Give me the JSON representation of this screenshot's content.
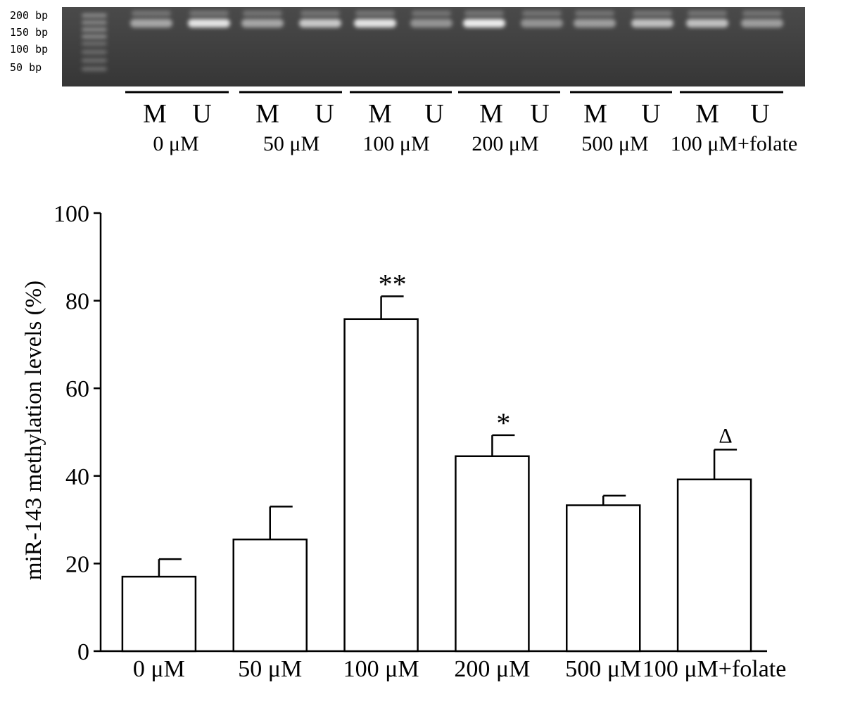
{
  "gel": {
    "size_markers": [
      "200 bp",
      "150 bp",
      "100 bp",
      "50 bp"
    ],
    "groups": [
      {
        "conc": "0 μM",
        "lanes": [
          "M",
          "U"
        ]
      },
      {
        "conc": "50 μM",
        "lanes": [
          "M",
          "U"
        ]
      },
      {
        "conc": "100 μM",
        "lanes": [
          "M",
          "U"
        ]
      },
      {
        "conc": "200 μM",
        "lanes": [
          "M",
          "U"
        ]
      },
      {
        "conc": "500 μM",
        "lanes": [
          "M",
          "U"
        ]
      },
      {
        "conc": "100 μM+folate",
        "lanes": [
          "M",
          "U"
        ]
      }
    ]
  },
  "chart_data": {
    "type": "bar",
    "categories": [
      "0 μM",
      "50 μM",
      "100 μM",
      "200 μM",
      "500 μM",
      "100 μM+folate"
    ],
    "values": [
      17,
      25.5,
      75.8,
      44.5,
      33.3,
      39.2
    ],
    "errors": [
      4,
      7.5,
      5.2,
      4.8,
      2.2,
      6.8
    ],
    "annotations": [
      "",
      "",
      "**",
      "*",
      "",
      "Δ"
    ],
    "ylabel": "miR-143 methylation levels (%)",
    "xlabel": "",
    "ylim": [
      0,
      100
    ],
    "yticks": [
      "0",
      "20",
      "40",
      "60",
      "80",
      "100"
    ],
    "grid": false,
    "bar_fill": "#ffffff",
    "bar_stroke": "#000000"
  }
}
